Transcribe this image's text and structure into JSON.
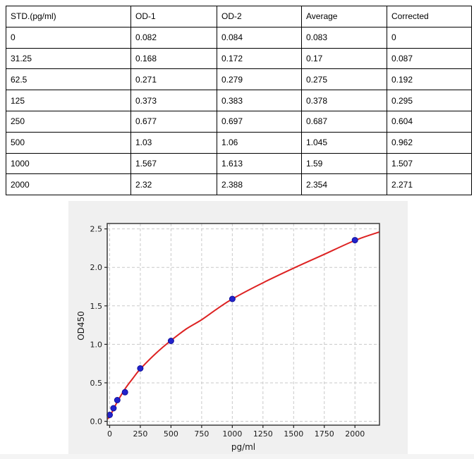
{
  "table": {
    "headers": [
      "STD.(pg/ml)",
      "OD-1",
      "OD-2",
      "Average",
      "Corrected"
    ],
    "rows": [
      [
        "0",
        "0.082",
        "0.084",
        "0.083",
        "0"
      ],
      [
        "31.25",
        "0.168",
        "0.172",
        "0.17",
        "0.087"
      ],
      [
        "62.5",
        "0.271",
        "0.279",
        "0.275",
        "0.192"
      ],
      [
        "125",
        "0.373",
        "0.383",
        "0.378",
        "0.295"
      ],
      [
        "250",
        "0.677",
        "0.697",
        "0.687",
        "0.604"
      ],
      [
        "500",
        "1.03",
        "1.06",
        "1.045",
        "0.962"
      ],
      [
        "1000",
        "1.567",
        "1.613",
        "1.59",
        "1.507"
      ],
      [
        "2000",
        "2.32",
        "2.388",
        "2.354",
        "2.271"
      ]
    ]
  },
  "chart_data": {
    "type": "scatter",
    "title": "",
    "xlabel": "pg/ml",
    "ylabel": "OD450",
    "xlim": [
      -20,
      2200
    ],
    "ylim": [
      -0.05,
      2.57
    ],
    "x_ticks": [
      0,
      250,
      500,
      750,
      1000,
      1250,
      1500,
      1750,
      2000
    ],
    "y_ticks": [
      0.0,
      0.5,
      1.0,
      1.5,
      2.0,
      2.5
    ],
    "grid": "dashed",
    "legend": "none",
    "series": [
      {
        "name": "standard-points",
        "type": "scatter",
        "x": [
          0,
          31.25,
          62.5,
          125,
          250,
          500,
          1000,
          2000
        ],
        "y": [
          0.083,
          0.17,
          0.275,
          0.378,
          0.687,
          1.045,
          1.59,
          2.354
        ],
        "color": "#2222cc",
        "edge_color": "#10109a"
      },
      {
        "name": "fitted-curve",
        "type": "line",
        "x": [
          -17,
          0,
          31.25,
          62.5,
          125,
          187.5,
          250,
          375,
          500,
          625,
          750,
          875,
          1000,
          1250,
          1500,
          1750,
          2000,
          2200
        ],
        "y": [
          0.03,
          0.065,
          0.155,
          0.255,
          0.42,
          0.555,
          0.68,
          0.88,
          1.05,
          1.2,
          1.32,
          1.46,
          1.59,
          1.8,
          1.99,
          2.17,
          2.35,
          2.46
        ],
        "color": "#dd2222"
      }
    ],
    "colors": {
      "figure_bg": "#f0f0f0",
      "plot_bg": "#ffffff",
      "grid": "#c9c9c9",
      "spine": "#3c3c3c",
      "tick": "#222222",
      "tick_label": "#1a1a1a"
    }
  }
}
